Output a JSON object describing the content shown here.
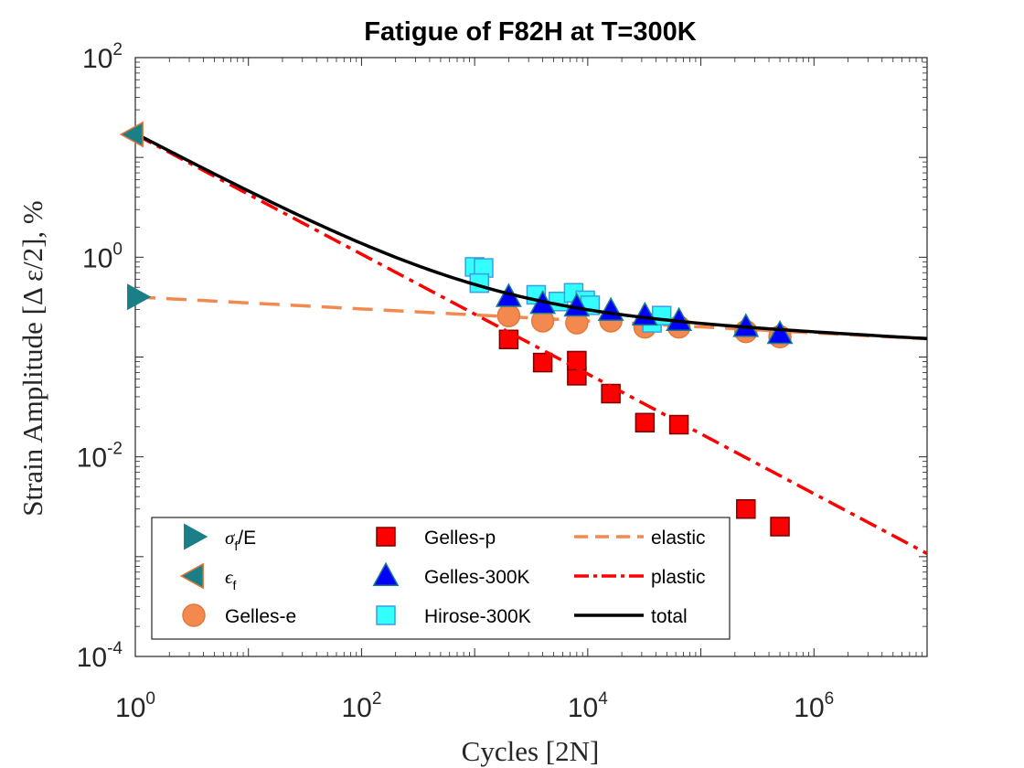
{
  "chart_data": {
    "type": "scatter",
    "title": "Fatigue of F82H at T=300K",
    "xlabel": "Cycles [2N]",
    "ylabel": "Strain Amplitude [Δ ε/2], %",
    "xscale": "log",
    "yscale": "log",
    "xlim": [
      1,
      10000000
    ],
    "ylim": [
      0.0001,
      100
    ],
    "grid": false,
    "legend_position": "bottom-left",
    "xticks": [
      {
        "base": "10",
        "exp": "0",
        "value": 1
      },
      {
        "base": "10",
        "exp": "2",
        "value": 100
      },
      {
        "base": "10",
        "exp": "4",
        "value": 10000
      },
      {
        "base": "10",
        "exp": "6",
        "value": 1000000
      }
    ],
    "yticks": [
      {
        "base": "10",
        "exp": "2",
        "value": 100
      },
      {
        "base": "10",
        "exp": "0",
        "value": 1
      },
      {
        "base": "10",
        "exp": "-2",
        "value": 0.01
      },
      {
        "base": "10",
        "exp": "-4",
        "value": 0.0001
      }
    ],
    "fits": {
      "elastic": {
        "coefficient": 0.4,
        "exponent": -0.06
      },
      "plastic": {
        "coefficient": 17,
        "exponent": -0.6
      },
      "total": "elastic + plastic"
    },
    "series": [
      {
        "name": "sigma_f/E",
        "label_symbol": "σ",
        "label_sub": "f",
        "label_rest": "/E",
        "marker": "triangle-right",
        "color": "#1a7f86",
        "points": [
          [
            1,
            0.4
          ]
        ]
      },
      {
        "name": "epsilon_f",
        "label_symbol": "ϵ",
        "label_sub": "f",
        "label_rest": "",
        "marker": "triangle-left",
        "color": "#1a7f86",
        "edge": "#e0783a",
        "points": [
          [
            1,
            17
          ]
        ]
      },
      {
        "name": "Gelles-e",
        "marker": "circle",
        "color": "#f4894f",
        "edge": "#e07a3c",
        "points": [
          [
            2000,
            0.26
          ],
          [
            4000,
            0.23
          ],
          [
            8000,
            0.22
          ],
          [
            16000,
            0.23
          ],
          [
            32000,
            0.2
          ],
          [
            64000,
            0.2
          ],
          [
            250000,
            0.18
          ],
          [
            500000,
            0.16
          ]
        ]
      },
      {
        "name": "Gelles-p",
        "marker": "square",
        "color": "#ff0000",
        "edge": "#7a0000",
        "points": [
          [
            2000,
            0.15
          ],
          [
            4000,
            0.088
          ],
          [
            8000,
            0.065
          ],
          [
            8000,
            0.092
          ],
          [
            16000,
            0.043
          ],
          [
            32000,
            0.022
          ],
          [
            64000,
            0.021
          ],
          [
            250000,
            0.003
          ],
          [
            500000,
            0.002
          ]
        ]
      },
      {
        "name": "Gelles-300K",
        "marker": "triangle-up",
        "color": "#0000ff",
        "edge": "#1a7f86",
        "points": [
          [
            2000,
            0.4
          ],
          [
            4000,
            0.34
          ],
          [
            8000,
            0.32
          ],
          [
            16000,
            0.29
          ],
          [
            32000,
            0.26
          ],
          [
            64000,
            0.23
          ],
          [
            250000,
            0.2
          ],
          [
            500000,
            0.17
          ]
        ]
      },
      {
        "name": "Hirose-300K",
        "marker": "square",
        "color": "#33ffff",
        "edge": "#3b9ee0",
        "points": [
          [
            1000,
            0.8
          ],
          [
            1200,
            0.78
          ],
          [
            1100,
            0.55
          ],
          [
            3500,
            0.42
          ],
          [
            5500,
            0.36
          ],
          [
            7500,
            0.44
          ],
          [
            9500,
            0.37
          ],
          [
            10500,
            0.33
          ],
          [
            37000,
            0.22
          ],
          [
            45000,
            0.26
          ]
        ]
      },
      {
        "name": "elastic",
        "line": "dashed",
        "color": "#f4894f"
      },
      {
        "name": "plastic",
        "line": "dashdot",
        "color": "#ff0000"
      },
      {
        "name": "total",
        "line": "solid",
        "color": "#000000"
      }
    ]
  }
}
